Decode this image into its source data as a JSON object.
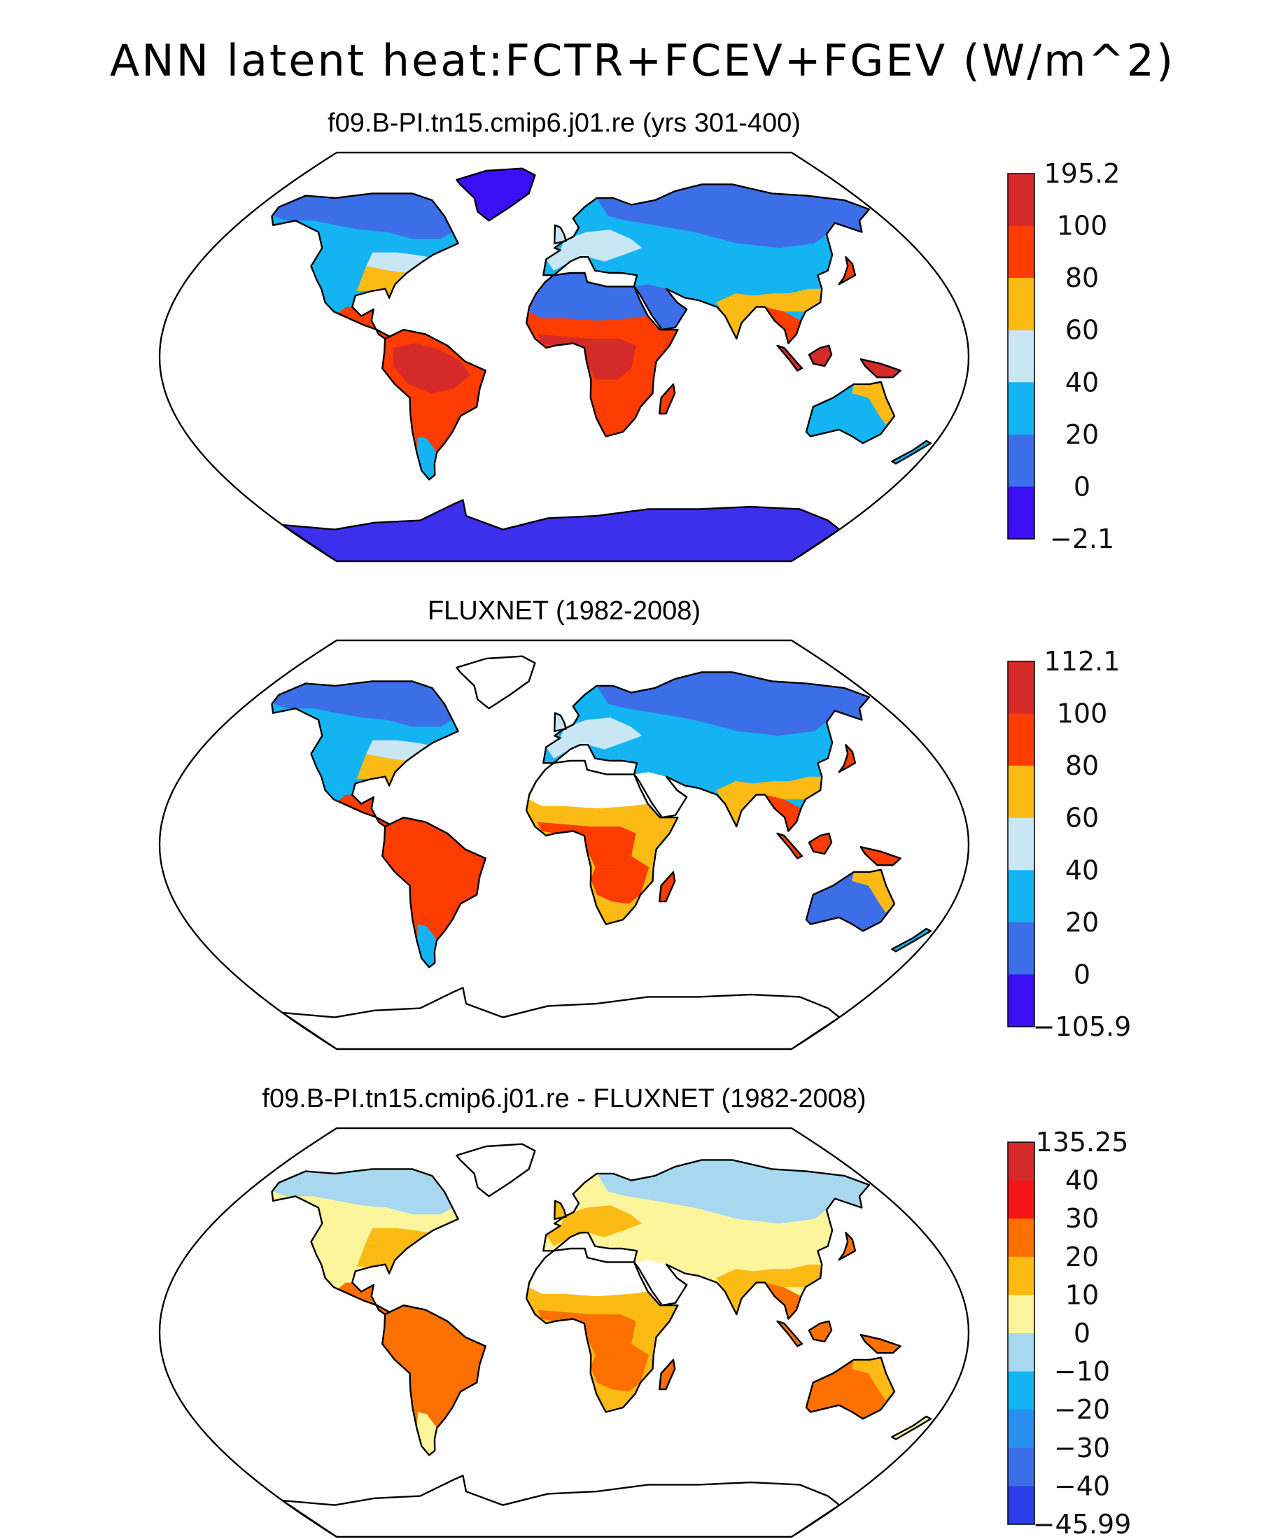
{
  "main_title": "ANN latent heat:FCTR+FCEV+FGEV (W/m^2)",
  "panels": [
    {
      "title": "f09.B-PI.tn15.cmip6.j01.re (yrs 301-400)",
      "colorbar": {
        "labels": [
          "195.2",
          "100",
          "80",
          "60",
          "40",
          "20",
          "0",
          "−2.1"
        ],
        "colors": [
          "#d42a2a",
          "#fc3c00",
          "#fbbb14",
          "#c9e6f5",
          "#14b4f2",
          "#3c6ee8",
          "#3c0ef5"
        ]
      },
      "colors": {
        "antarctica": "#3c30ec",
        "greenland": "#3c0ef5",
        "boreal": "#3c6ee8",
        "midlat": "#14b4f2",
        "temperate": "#c9e6f5",
        "warm": "#fbbb14",
        "humid": "#fc3c00",
        "tropic": "#d42a2a",
        "desert": "#3c6ee8",
        "sahel": "#fc3c00",
        "australia": "#14b4f2"
      }
    },
    {
      "title": "FLUXNET (1982-2008)",
      "colorbar": {
        "labels": [
          "112.1",
          "100",
          "80",
          "60",
          "40",
          "20",
          "0",
          "−105.9"
        ],
        "colors": [
          "#d42a2a",
          "#fc3c00",
          "#fbbb14",
          "#c9e6f5",
          "#14b4f2",
          "#3c6ee8",
          "#3c0ef5"
        ]
      },
      "colors": {
        "antarctica": "#ffffff",
        "greenland": "#ffffff",
        "boreal": "#3c6ee8",
        "midlat": "#14b4f2",
        "temperate": "#c9e6f5",
        "warm": "#fbbb14",
        "humid": "#fc3c00",
        "tropic": "#fc3c00",
        "desert": "#ffffff",
        "sahel": "#fbbb14",
        "australia": "#3c6ee8"
      }
    },
    {
      "title": "f09.B-PI.tn15.cmip6.j01.re - FLUXNET (1982-2008)",
      "colorbar": {
        "labels": [
          "135.25",
          "40",
          "30",
          "20",
          "10",
          "0",
          "−10",
          "−20",
          "−30",
          "−40",
          "−45.99"
        ],
        "colors": [
          "#d42a2a",
          "#f51414",
          "#fc7000",
          "#fbbb14",
          "#fdf59c",
          "#a8d8f0",
          "#14b4f2",
          "#2890f0",
          "#3c6ee8",
          "#2c3ce8"
        ]
      },
      "colors": {
        "antarctica": "#ffffff",
        "greenland": "#ffffff",
        "boreal": "#a8d8f0",
        "midlat": "#fdf59c",
        "temperate": "#fbbb14",
        "warm": "#fbbb14",
        "humid": "#fc7000",
        "tropic": "#fc7000",
        "desert": "#ffffff",
        "sahel": "#fbbb14",
        "australia": "#fc7000"
      }
    }
  ]
}
